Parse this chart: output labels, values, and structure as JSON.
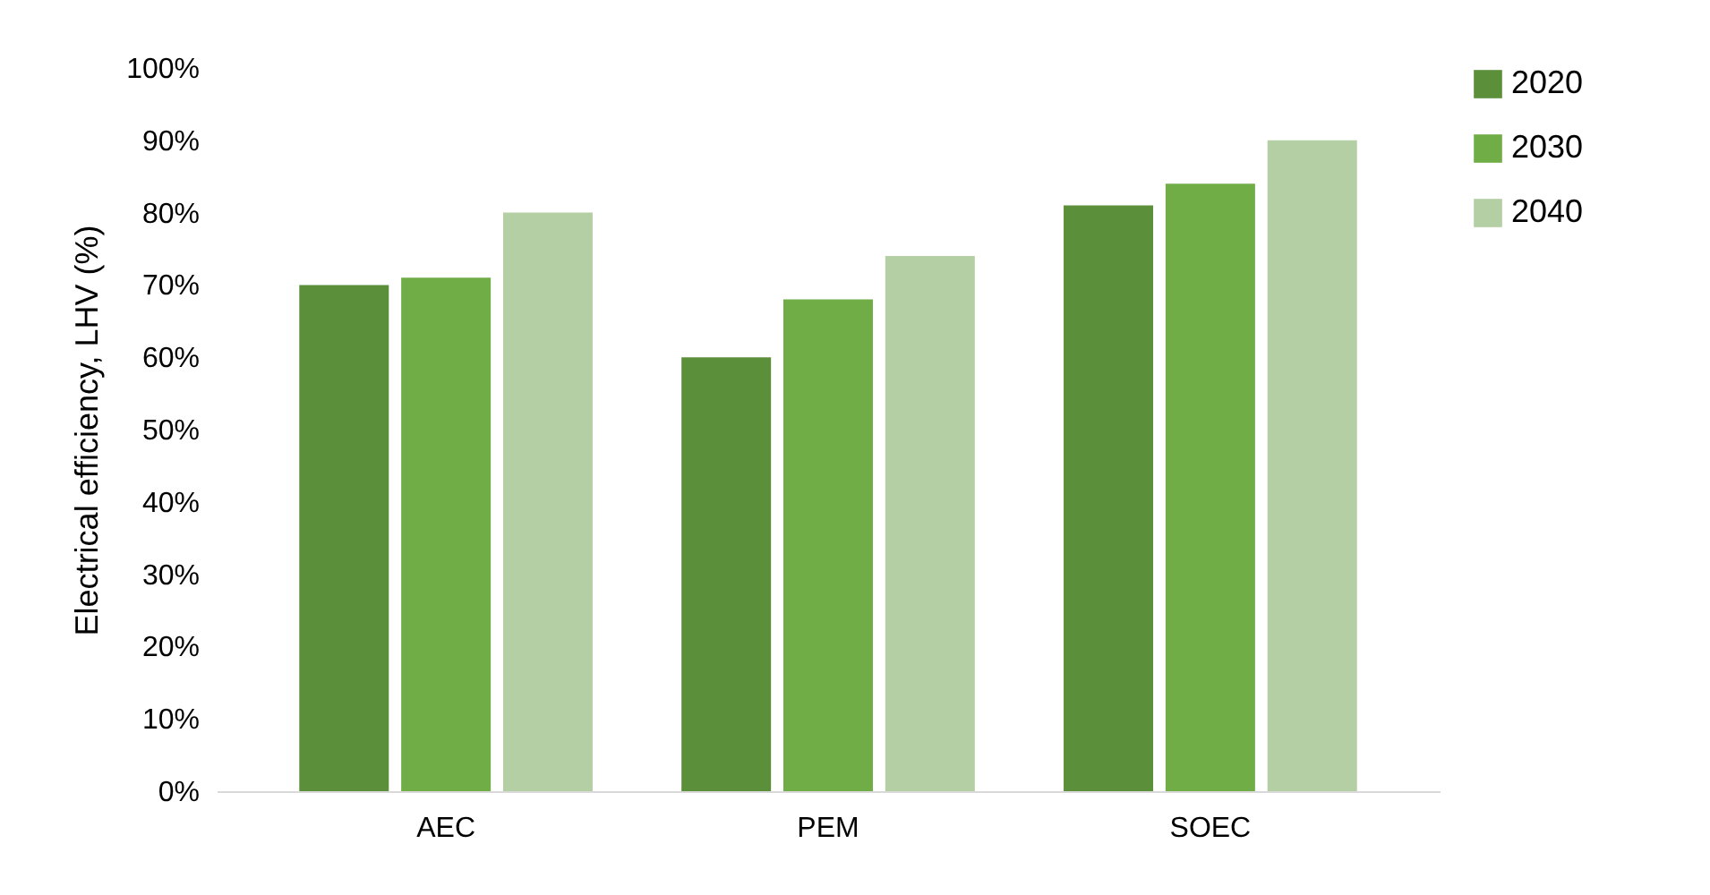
{
  "chart_data": {
    "type": "bar",
    "ylabel": "Electrical efficiency, LHV (%)",
    "categories": [
      "AEC",
      "PEM",
      "SOEC"
    ],
    "series": [
      {
        "name": "2020",
        "color": "#5b8f3a",
        "values": [
          70,
          60,
          81
        ]
      },
      {
        "name": "2030",
        "color": "#70ad47",
        "values": [
          71,
          68,
          84
        ]
      },
      {
        "name": "2040",
        "color": "#b4cfa3",
        "values": [
          80,
          74,
          90
        ]
      }
    ],
    "ylim": [
      0,
      100
    ],
    "yticks": [
      {
        "value": 0,
        "label": "0%"
      },
      {
        "value": 10,
        "label": "10%"
      },
      {
        "value": 20,
        "label": "20%"
      },
      {
        "value": 30,
        "label": "30%"
      },
      {
        "value": 40,
        "label": "40%"
      },
      {
        "value": 50,
        "label": "50%"
      },
      {
        "value": 60,
        "label": "60%"
      },
      {
        "value": 70,
        "label": "70%"
      },
      {
        "value": 80,
        "label": "80%"
      },
      {
        "value": 90,
        "label": "90%"
      },
      {
        "value": 100,
        "label": "100%"
      }
    ],
    "grid": false,
    "legend": "right"
  }
}
